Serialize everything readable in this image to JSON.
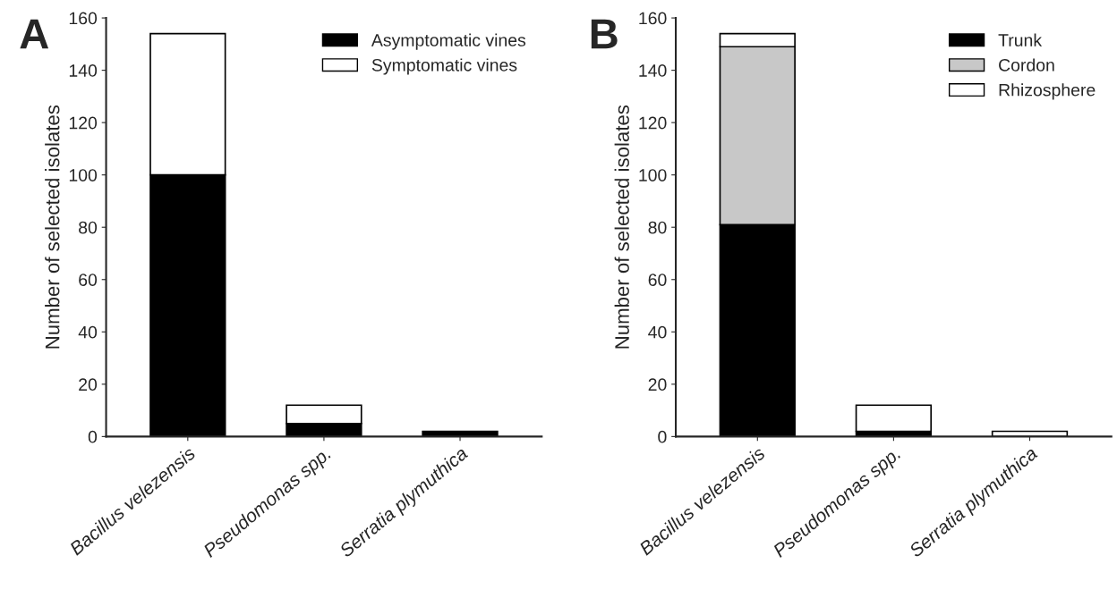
{
  "chart_data": [
    {
      "type": "bar",
      "stacked": true,
      "annotations": [
        "A"
      ],
      "ylabel": "Number of selected isolates",
      "categories": [
        "Bacillus velezensis",
        "Pseudomonas spp.",
        "Serratia plymuthica"
      ],
      "ylim": [
        0,
        160
      ],
      "yticks": [
        0,
        20,
        40,
        60,
        80,
        100,
        120,
        140,
        160
      ],
      "legend": "top right",
      "grid": false,
      "series": [
        {
          "name": "Asymptomatic vines",
          "color": "#000000",
          "values": [
            100,
            5,
            2
          ]
        },
        {
          "name": "Symptomatic vines",
          "color": "#ffffff",
          "values": [
            54,
            7,
            0
          ]
        }
      ]
    },
    {
      "type": "bar",
      "stacked": true,
      "annotations": [
        "B"
      ],
      "ylabel": "Number of selected isolates",
      "categories": [
        "Bacillus velezensis",
        "Pseudomonas spp.",
        "Serratia plymuthica"
      ],
      "ylim": [
        0,
        160
      ],
      "yticks": [
        0,
        20,
        40,
        60,
        80,
        100,
        120,
        140,
        160
      ],
      "legend": "top right",
      "grid": false,
      "series": [
        {
          "name": "Trunk",
          "color": "#000000",
          "values": [
            81,
            2,
            0
          ]
        },
        {
          "name": "Cordon",
          "color": "#c8c8c8",
          "values": [
            68,
            0,
            0
          ]
        },
        {
          "name": "Rhizosphere",
          "color": "#ffffff",
          "values": [
            5,
            10,
            2
          ]
        }
      ]
    }
  ]
}
